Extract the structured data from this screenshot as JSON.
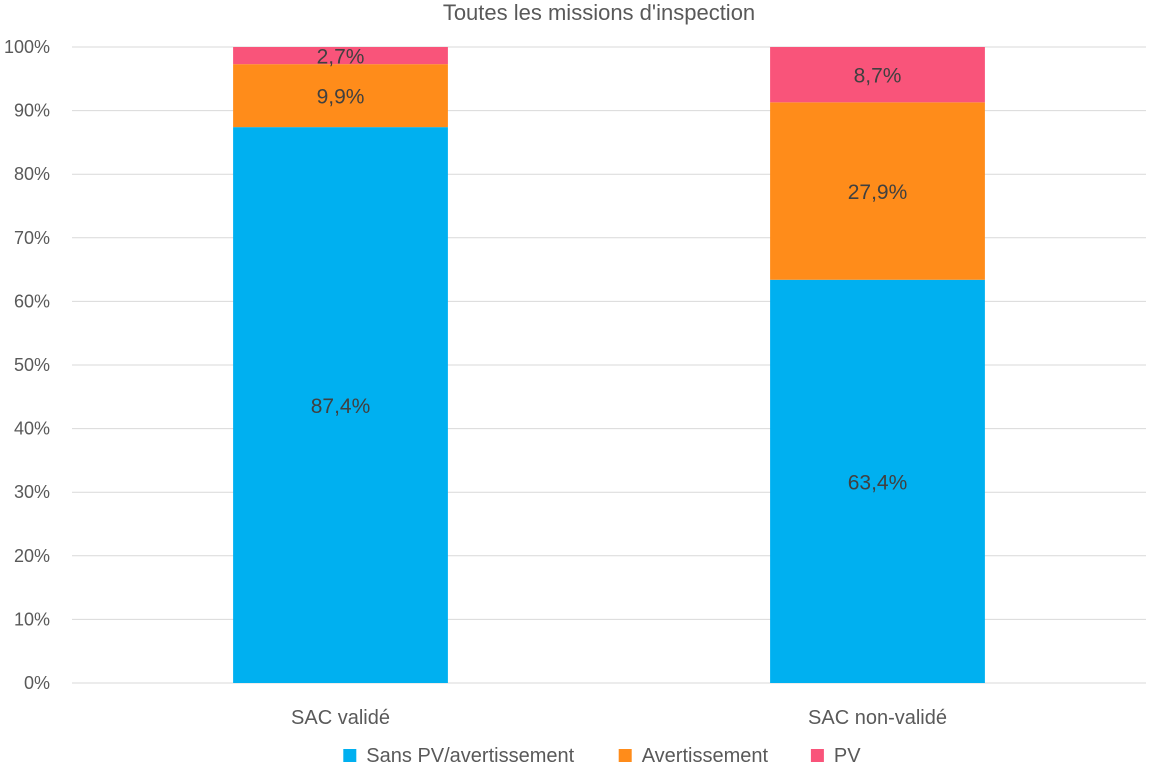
{
  "chart_data": {
    "type": "bar",
    "stacked": true,
    "normalized": true,
    "title": "Toutes les missions d'inspection",
    "categories": [
      "SAC validé",
      "SAC non-validé"
    ],
    "series": [
      {
        "name": "Sans PV/avertissement",
        "values": [
          87.4,
          63.4
        ],
        "labels": [
          "87,4%",
          "63,4%"
        ],
        "color": "#00b0f0"
      },
      {
        "name": "Avertissement",
        "values": [
          9.9,
          27.9
        ],
        "labels": [
          "9,9%",
          "27,9%"
        ],
        "color": "#ff8c1a"
      },
      {
        "name": "PV",
        "values": [
          2.7,
          8.7
        ],
        "labels": [
          "2,7%",
          "8,7%"
        ],
        "color": "#f9547a"
      }
    ],
    "ylim": [
      0,
      100
    ],
    "yticks": [
      "0%",
      "10%",
      "20%",
      "30%",
      "40%",
      "50%",
      "60%",
      "70%",
      "80%",
      "90%",
      "100%"
    ],
    "grid": true,
    "legend_position": "bottom"
  }
}
